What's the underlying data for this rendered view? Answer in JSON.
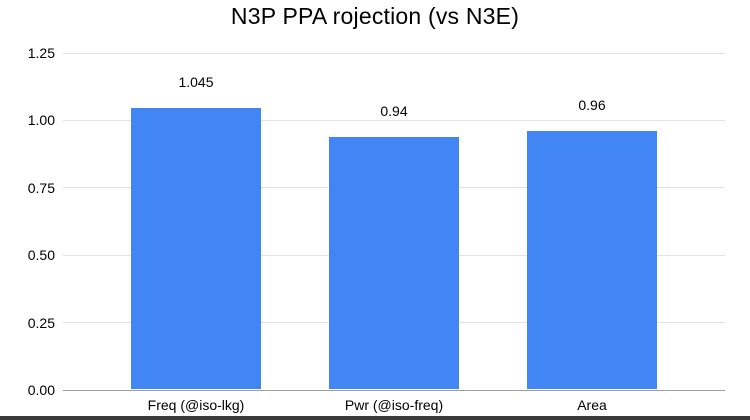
{
  "chart_data": {
    "type": "bar",
    "title": "N3P PPA rojection (vs N3E)",
    "categories": [
      "Freq (@iso-lkg)",
      "Pwr (@iso-freq)",
      "Area"
    ],
    "values": [
      1.045,
      0.94,
      0.96
    ],
    "value_labels": [
      "1.045",
      "0.94",
      "0.96"
    ],
    "xlabel": "",
    "ylabel": "",
    "ylim": [
      0,
      1.25
    ],
    "yticks": [
      {
        "value": 0.0,
        "label": "0.00"
      },
      {
        "value": 0.25,
        "label": "0.25"
      },
      {
        "value": 0.5,
        "label": "0.50"
      },
      {
        "value": 0.75,
        "label": "0.75"
      },
      {
        "value": 1.0,
        "label": "1.00"
      },
      {
        "value": 1.25,
        "label": "1.25"
      }
    ],
    "grid": true,
    "legend": "none",
    "colors": {
      "bar": "#4285f4",
      "gridline": "#e2e2e2",
      "baseline": "#9e9e9e",
      "text": "#000000",
      "background": "#ffffff",
      "bottom_strip": "#3a3a3a"
    }
  }
}
